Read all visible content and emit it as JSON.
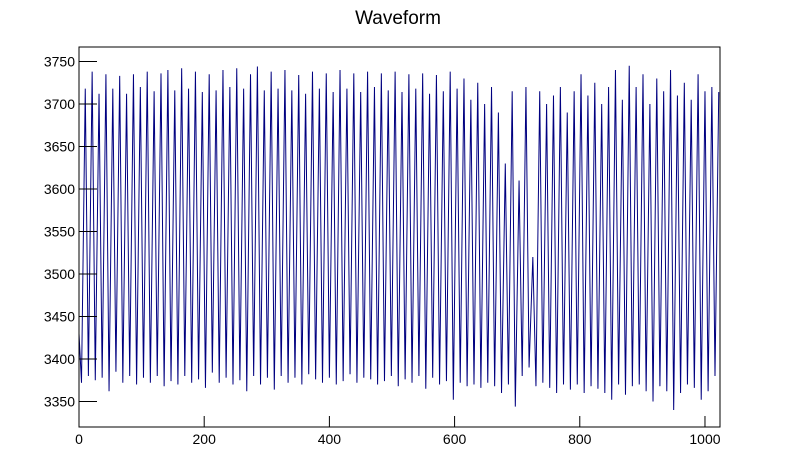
{
  "chart_data": {
    "type": "line",
    "title": "Waveform",
    "color": "#000080",
    "xlim": [
      0,
      1024
    ],
    "xticks": [
      0,
      200,
      400,
      600,
      800,
      1000
    ],
    "ylim": [
      3320,
      3767
    ],
    "yticks": [
      3350,
      3400,
      3450,
      3500,
      3550,
      3600,
      3650,
      3700,
      3750
    ],
    "x": [
      0,
      4,
      10,
      15,
      21,
      26,
      32,
      37,
      43,
      48,
      54,
      59,
      65,
      70,
      76,
      81,
      87,
      92,
      98,
      103,
      109,
      114,
      120,
      125,
      131,
      136,
      142,
      147,
      153,
      158,
      164,
      169,
      175,
      180,
      186,
      191,
      197,
      202,
      208,
      213,
      219,
      224,
      230,
      235,
      241,
      246,
      252,
      257,
      263,
      268,
      274,
      279,
      285,
      290,
      296,
      301,
      307,
      312,
      318,
      323,
      329,
      334,
      340,
      345,
      351,
      356,
      362,
      367,
      373,
      378,
      384,
      389,
      395,
      400,
      406,
      411,
      417,
      422,
      428,
      433,
      439,
      444,
      450,
      455,
      461,
      466,
      472,
      477,
      483,
      488,
      494,
      499,
      505,
      510,
      516,
      521,
      527,
      532,
      538,
      543,
      549,
      554,
      560,
      565,
      571,
      576,
      582,
      587,
      593,
      598,
      604,
      609,
      615,
      620,
      626,
      631,
      637,
      642,
      648,
      653,
      659,
      664,
      670,
      675,
      681,
      686,
      692,
      697,
      703,
      708,
      714,
      719,
      725,
      730,
      736,
      741,
      747,
      752,
      758,
      763,
      769,
      774,
      780,
      785,
      791,
      796,
      802,
      807,
      813,
      818,
      824,
      829,
      835,
      840,
      846,
      851,
      857,
      862,
      868,
      873,
      879,
      884,
      890,
      895,
      901,
      906,
      912,
      917,
      923,
      928,
      934,
      939,
      945,
      950,
      956,
      961,
      967,
      972,
      978,
      983,
      989,
      994,
      1000,
      1005,
      1011,
      1016,
      1022
    ],
    "values": [
      3430,
      3372,
      3718,
      3380,
      3738,
      3375,
      3712,
      3378,
      3735,
      3362,
      3718,
      3385,
      3733,
      3372,
      3712,
      3380,
      3735,
      3370,
      3720,
      3378,
      3738,
      3372,
      3715,
      3380,
      3736,
      3368,
      3740,
      3374,
      3716,
      3370,
      3742,
      3380,
      3718,
      3372,
      3738,
      3376,
      3714,
      3366,
      3735,
      3384,
      3716,
      3372,
      3740,
      3378,
      3720,
      3370,
      3742,
      3375,
      3718,
      3362,
      3735,
      3380,
      3744,
      3370,
      3716,
      3378,
      3738,
      3364,
      3718,
      3380,
      3740,
      3372,
      3716,
      3378,
      3734,
      3370,
      3712,
      3382,
      3738,
      3376,
      3718,
      3372,
      3736,
      3378,
      3714,
      3370,
      3740,
      3374,
      3718,
      3382,
      3736,
      3372,
      3714,
      3378,
      3738,
      3376,
      3720,
      3370,
      3736,
      3374,
      3716,
      3380,
      3738,
      3368,
      3714,
      3376,
      3735,
      3372,
      3718,
      3380,
      3736,
      3365,
      3712,
      3378,
      3734,
      3370,
      3715,
      3374,
      3738,
      3352,
      3718,
      3372,
      3730,
      3368,
      3705,
      3370,
      3725,
      3366,
      3700,
      3372,
      3720,
      3368,
      3690,
      3360,
      3630,
      3370,
      3715,
      3344,
      3610,
      3380,
      3720,
      3390,
      3520,
      3368,
      3715,
      3372,
      3700,
      3366,
      3710,
      3360,
      3720,
      3370,
      3690,
      3364,
      3715,
      3370,
      3735,
      3360,
      3710,
      3368,
      3725,
      3365,
      3700,
      3360,
      3720,
      3352,
      3740,
      3370,
      3705,
      3358,
      3745,
      3368,
      3720,
      3370,
      3735,
      3362,
      3700,
      3350,
      3730,
      3368,
      3715,
      3362,
      3740,
      3340,
      3710,
      3360,
      3725,
      3370,
      3705,
      3366,
      3735,
      3352,
      3715,
      3362,
      3720,
      3380,
      3714
    ]
  }
}
